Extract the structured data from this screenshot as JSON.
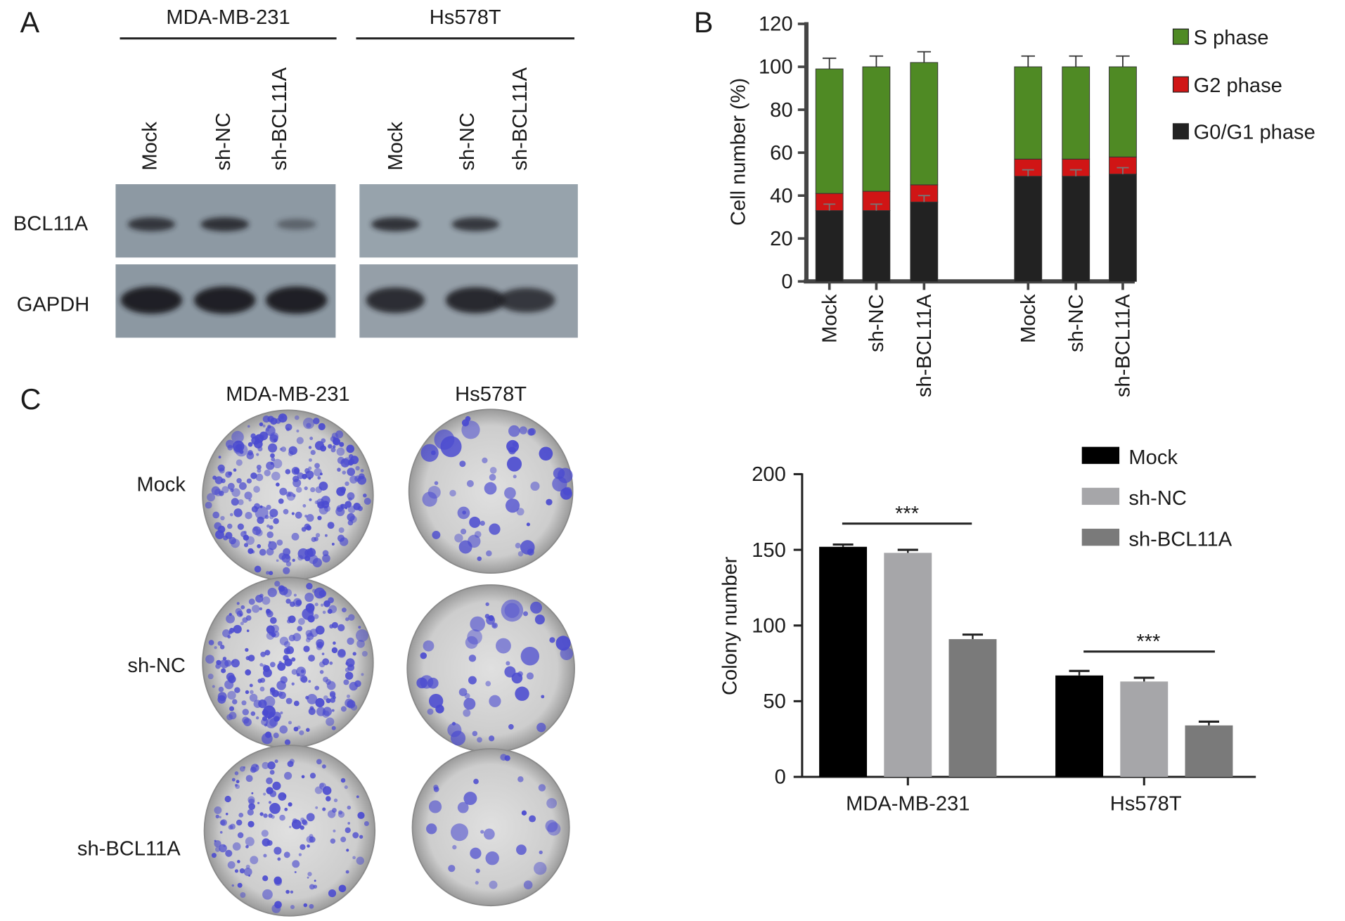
{
  "panels": {
    "a": {
      "letter": "A",
      "groups": [
        "MDA-MB-231",
        "Hs578T"
      ],
      "lanes": [
        "Mock",
        "sh-NC",
        "sh-BCL11A"
      ],
      "rows": [
        "BCL11A",
        "GAPDH"
      ],
      "band_intensity": {
        "BCL11A": {
          "MDA-MB-231": [
            0.75,
            0.8,
            0.25
          ],
          "Hs578T": [
            0.8,
            0.75,
            0.0
          ]
        },
        "GAPDH": {
          "MDA-MB-231": [
            1.0,
            1.0,
            1.0
          ],
          "Hs578T": [
            0.85,
            0.9,
            0.75
          ]
        }
      }
    },
    "b": {
      "letter": "B"
    },
    "c": {
      "letter": "C",
      "columns": [
        "MDA-MB-231",
        "Hs578T"
      ],
      "rows": [
        "Mock",
        "sh-NC",
        "sh-BCL11A"
      ]
    }
  },
  "chart_data": [
    {
      "type": "bar",
      "stacked": true,
      "categories": [
        "Mock",
        "sh-NC",
        "sh-BCL11A",
        "Mock",
        "sh-NC",
        "sh-BCL11A"
      ],
      "series": [
        {
          "name": "G0/G1 phase",
          "color": "#222222",
          "values": [
            33,
            33,
            37,
            49,
            49,
            50
          ]
        },
        {
          "name": "G2 phase",
          "color": "#d01515",
          "values": [
            8,
            9,
            8,
            8,
            8,
            8
          ]
        },
        {
          "name": "S phase",
          "color": "#4f8a24",
          "values": [
            58,
            58,
            57,
            43,
            43,
            42
          ]
        }
      ],
      "error": [
        5,
        5,
        5,
        5,
        5,
        5
      ],
      "ylabel": "Cell number (%)",
      "ylim": [
        0,
        120
      ],
      "yticks": [
        0,
        20,
        40,
        60,
        80,
        100,
        120
      ],
      "legend": "right"
    },
    {
      "type": "bar",
      "categories": [
        "MDA-MB-231",
        "Hs578T"
      ],
      "series": [
        {
          "name": "Mock",
          "color": "#000000",
          "values": [
            152,
            67
          ],
          "error": [
            1.5,
            3
          ]
        },
        {
          "name": "sh-NC",
          "color": "#a6a6a9",
          "values": [
            148,
            63
          ],
          "error": [
            2,
            2.5
          ]
        },
        {
          "name": "sh-BCL11A",
          "color": "#7a7a7a",
          "values": [
            91,
            34
          ],
          "error": [
            3,
            2.5
          ]
        }
      ],
      "ylabel": "Colony number",
      "ylim": [
        0,
        200
      ],
      "yticks": [
        0,
        50,
        100,
        150,
        200
      ],
      "significance": [
        "***",
        "***"
      ],
      "legend": "top-right"
    }
  ],
  "colors": {
    "band": "#1c1c20",
    "blot_bg": "#8e9aa4",
    "stain": "#4a4ad0",
    "plate": "#d6d6d6"
  }
}
